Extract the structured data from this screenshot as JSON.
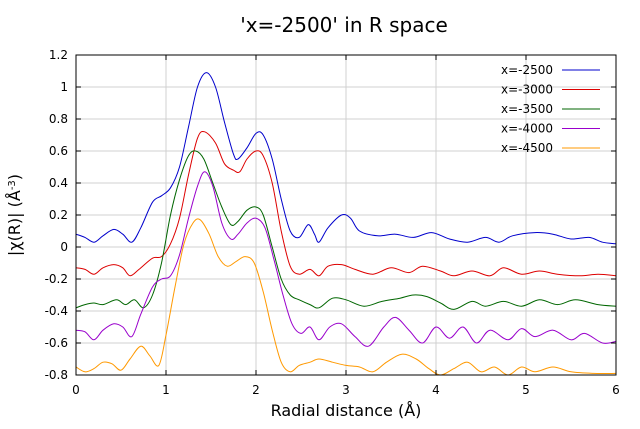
{
  "chart_data": {
    "type": "line",
    "title": "'x=-2500' in R space",
    "xlabel": "Radial distance    (Å)",
    "ylabel": "|χ(R)|    (Å",
    "ylabel_sup": "-3",
    "ylabel_close": ")",
    "xlim": [
      0,
      6
    ],
    "ylim": [
      -0.8,
      1.2
    ],
    "x_ticks": [
      0,
      1,
      2,
      3,
      4,
      5,
      6
    ],
    "x_tick_labels": [
      "0",
      "1",
      "2",
      "3",
      "4",
      "5",
      "6"
    ],
    "y_ticks": [
      -0.8,
      -0.6,
      -0.4,
      -0.2,
      0,
      0.2,
      0.4,
      0.6,
      0.8,
      1,
      1.2
    ],
    "y_tick_labels": [
      "-0.8",
      "-0.6",
      "-0.4",
      "-0.2",
      "0",
      "0.2",
      "0.4",
      "0.6",
      "0.8",
      "1",
      "1.2"
    ],
    "grid": true,
    "legend_position": "top-right",
    "series": [
      {
        "name": "x=-2500",
        "color": "#0000cc",
        "points": [
          [
            0,
            0.08
          ],
          [
            0.1,
            0.06
          ],
          [
            0.2,
            0.03
          ],
          [
            0.3,
            0.07
          ],
          [
            0.42,
            0.11
          ],
          [
            0.52,
            0.08
          ],
          [
            0.62,
            0.03
          ],
          [
            0.72,
            0.12
          ],
          [
            0.85,
            0.28
          ],
          [
            0.95,
            0.32
          ],
          [
            1.05,
            0.37
          ],
          [
            1.15,
            0.5
          ],
          [
            1.25,
            0.75
          ],
          [
            1.35,
            1.0
          ],
          [
            1.45,
            1.09
          ],
          [
            1.55,
            1.0
          ],
          [
            1.65,
            0.78
          ],
          [
            1.75,
            0.58
          ],
          [
            1.8,
            0.55
          ],
          [
            1.9,
            0.62
          ],
          [
            2.0,
            0.71
          ],
          [
            2.08,
            0.7
          ],
          [
            2.18,
            0.55
          ],
          [
            2.28,
            0.3
          ],
          [
            2.38,
            0.1
          ],
          [
            2.48,
            0.06
          ],
          [
            2.58,
            0.14
          ],
          [
            2.65,
            0.08
          ],
          [
            2.7,
            0.03
          ],
          [
            2.8,
            0.12
          ],
          [
            2.95,
            0.2
          ],
          [
            3.05,
            0.18
          ],
          [
            3.15,
            0.1
          ],
          [
            3.35,
            0.07
          ],
          [
            3.55,
            0.08
          ],
          [
            3.75,
            0.06
          ],
          [
            3.95,
            0.09
          ],
          [
            4.15,
            0.05
          ],
          [
            4.35,
            0.03
          ],
          [
            4.55,
            0.06
          ],
          [
            4.7,
            0.03
          ],
          [
            4.85,
            0.07
          ],
          [
            5.1,
            0.09
          ],
          [
            5.3,
            0.08
          ],
          [
            5.5,
            0.05
          ],
          [
            5.7,
            0.06
          ],
          [
            5.85,
            0.03
          ],
          [
            6.0,
            0.02
          ]
        ]
      },
      {
        "name": "x=-3000",
        "color": "#dd0000",
        "points": [
          [
            0,
            -0.13
          ],
          [
            0.1,
            -0.14
          ],
          [
            0.2,
            -0.17
          ],
          [
            0.3,
            -0.13
          ],
          [
            0.42,
            -0.11
          ],
          [
            0.52,
            -0.13
          ],
          [
            0.6,
            -0.18
          ],
          [
            0.7,
            -0.14
          ],
          [
            0.85,
            -0.07
          ],
          [
            0.95,
            -0.06
          ],
          [
            1.05,
            0.02
          ],
          [
            1.15,
            0.18
          ],
          [
            1.25,
            0.45
          ],
          [
            1.35,
            0.68
          ],
          [
            1.43,
            0.72
          ],
          [
            1.55,
            0.65
          ],
          [
            1.65,
            0.52
          ],
          [
            1.75,
            0.48
          ],
          [
            1.82,
            0.47
          ],
          [
            1.9,
            0.55
          ],
          [
            2.0,
            0.6
          ],
          [
            2.08,
            0.57
          ],
          [
            2.18,
            0.4
          ],
          [
            2.28,
            0.1
          ],
          [
            2.38,
            -0.12
          ],
          [
            2.48,
            -0.17
          ],
          [
            2.6,
            -0.14
          ],
          [
            2.7,
            -0.18
          ],
          [
            2.8,
            -0.12
          ],
          [
            2.95,
            -0.11
          ],
          [
            3.1,
            -0.14
          ],
          [
            3.3,
            -0.17
          ],
          [
            3.5,
            -0.13
          ],
          [
            3.7,
            -0.16
          ],
          [
            3.85,
            -0.12
          ],
          [
            4.05,
            -0.15
          ],
          [
            4.2,
            -0.18
          ],
          [
            4.4,
            -0.15
          ],
          [
            4.6,
            -0.18
          ],
          [
            4.75,
            -0.13
          ],
          [
            4.95,
            -0.17
          ],
          [
            5.15,
            -0.15
          ],
          [
            5.35,
            -0.17
          ],
          [
            5.6,
            -0.18
          ],
          [
            5.8,
            -0.17
          ],
          [
            6.0,
            -0.18
          ]
        ]
      },
      {
        "name": "x=-3500",
        "color": "#006600",
        "points": [
          [
            0,
            -0.38
          ],
          [
            0.1,
            -0.36
          ],
          [
            0.2,
            -0.35
          ],
          [
            0.3,
            -0.36
          ],
          [
            0.45,
            -0.33
          ],
          [
            0.55,
            -0.36
          ],
          [
            0.65,
            -0.33
          ],
          [
            0.75,
            -0.38
          ],
          [
            0.85,
            -0.3
          ],
          [
            0.95,
            -0.1
          ],
          [
            1.05,
            0.2
          ],
          [
            1.15,
            0.42
          ],
          [
            1.25,
            0.57
          ],
          [
            1.33,
            0.6
          ],
          [
            1.42,
            0.55
          ],
          [
            1.52,
            0.4
          ],
          [
            1.62,
            0.25
          ],
          [
            1.72,
            0.14
          ],
          [
            1.8,
            0.16
          ],
          [
            1.9,
            0.23
          ],
          [
            2.0,
            0.25
          ],
          [
            2.08,
            0.2
          ],
          [
            2.18,
            0.0
          ],
          [
            2.28,
            -0.2
          ],
          [
            2.38,
            -0.3
          ],
          [
            2.48,
            -0.33
          ],
          [
            2.6,
            -0.36
          ],
          [
            2.7,
            -0.38
          ],
          [
            2.85,
            -0.32
          ],
          [
            3.0,
            -0.33
          ],
          [
            3.2,
            -0.37
          ],
          [
            3.4,
            -0.34
          ],
          [
            3.6,
            -0.32
          ],
          [
            3.75,
            -0.3
          ],
          [
            3.9,
            -0.31
          ],
          [
            4.05,
            -0.35
          ],
          [
            4.2,
            -0.39
          ],
          [
            4.4,
            -0.34
          ],
          [
            4.55,
            -0.37
          ],
          [
            4.75,
            -0.34
          ],
          [
            4.95,
            -0.37
          ],
          [
            5.15,
            -0.33
          ],
          [
            5.35,
            -0.36
          ],
          [
            5.55,
            -0.33
          ],
          [
            5.8,
            -0.36
          ],
          [
            6.0,
            -0.37
          ]
        ]
      },
      {
        "name": "x=-4000",
        "color": "#9900cc",
        "points": [
          [
            0,
            -0.52
          ],
          [
            0.1,
            -0.53
          ],
          [
            0.2,
            -0.58
          ],
          [
            0.3,
            -0.52
          ],
          [
            0.42,
            -0.48
          ],
          [
            0.52,
            -0.5
          ],
          [
            0.62,
            -0.56
          ],
          [
            0.72,
            -0.42
          ],
          [
            0.85,
            -0.25
          ],
          [
            0.95,
            -0.2
          ],
          [
            1.05,
            -0.18
          ],
          [
            1.15,
            -0.05
          ],
          [
            1.25,
            0.18
          ],
          [
            1.35,
            0.38
          ],
          [
            1.43,
            0.47
          ],
          [
            1.52,
            0.38
          ],
          [
            1.62,
            0.15
          ],
          [
            1.72,
            0.05
          ],
          [
            1.8,
            0.08
          ],
          [
            1.9,
            0.15
          ],
          [
            2.0,
            0.18
          ],
          [
            2.1,
            0.12
          ],
          [
            2.2,
            -0.08
          ],
          [
            2.3,
            -0.3
          ],
          [
            2.4,
            -0.48
          ],
          [
            2.5,
            -0.54
          ],
          [
            2.6,
            -0.5
          ],
          [
            2.7,
            -0.58
          ],
          [
            2.82,
            -0.5
          ],
          [
            2.95,
            -0.48
          ],
          [
            3.1,
            -0.56
          ],
          [
            3.25,
            -0.62
          ],
          [
            3.42,
            -0.5
          ],
          [
            3.55,
            -0.44
          ],
          [
            3.7,
            -0.52
          ],
          [
            3.85,
            -0.6
          ],
          [
            4.0,
            -0.5
          ],
          [
            4.15,
            -0.57
          ],
          [
            4.3,
            -0.5
          ],
          [
            4.45,
            -0.6
          ],
          [
            4.6,
            -0.52
          ],
          [
            4.8,
            -0.58
          ],
          [
            4.95,
            -0.51
          ],
          [
            5.1,
            -0.56
          ],
          [
            5.3,
            -0.52
          ],
          [
            5.5,
            -0.58
          ],
          [
            5.65,
            -0.54
          ],
          [
            5.85,
            -0.6
          ],
          [
            6.0,
            -0.59
          ]
        ]
      },
      {
        "name": "x=-4500",
        "color": "#ff9900",
        "points": [
          [
            0,
            -0.75
          ],
          [
            0.1,
            -0.78
          ],
          [
            0.2,
            -0.76
          ],
          [
            0.3,
            -0.72
          ],
          [
            0.4,
            -0.73
          ],
          [
            0.5,
            -0.77
          ],
          [
            0.6,
            -0.7
          ],
          [
            0.72,
            -0.62
          ],
          [
            0.82,
            -0.68
          ],
          [
            0.92,
            -0.74
          ],
          [
            1.0,
            -0.55
          ],
          [
            1.1,
            -0.25
          ],
          [
            1.2,
            0.02
          ],
          [
            1.3,
            0.15
          ],
          [
            1.38,
            0.17
          ],
          [
            1.48,
            0.08
          ],
          [
            1.58,
            -0.06
          ],
          [
            1.68,
            -0.12
          ],
          [
            1.78,
            -0.09
          ],
          [
            1.88,
            -0.06
          ],
          [
            1.98,
            -0.1
          ],
          [
            2.08,
            -0.28
          ],
          [
            2.18,
            -0.52
          ],
          [
            2.28,
            -0.72
          ],
          [
            2.38,
            -0.78
          ],
          [
            2.48,
            -0.74
          ],
          [
            2.6,
            -0.72
          ],
          [
            2.7,
            -0.7
          ],
          [
            2.85,
            -0.72
          ],
          [
            3.0,
            -0.74
          ],
          [
            3.15,
            -0.75
          ],
          [
            3.3,
            -0.78
          ],
          [
            3.45,
            -0.72
          ],
          [
            3.62,
            -0.67
          ],
          [
            3.78,
            -0.7
          ],
          [
            3.92,
            -0.76
          ],
          [
            4.05,
            -0.8
          ],
          [
            4.2,
            -0.76
          ],
          [
            4.35,
            -0.72
          ],
          [
            4.5,
            -0.78
          ],
          [
            4.65,
            -0.75
          ],
          [
            4.8,
            -0.8
          ],
          [
            4.95,
            -0.75
          ],
          [
            5.1,
            -0.78
          ],
          [
            5.3,
            -0.75
          ],
          [
            5.5,
            -0.78
          ],
          [
            5.75,
            -0.79
          ],
          [
            6.0,
            -0.79
          ]
        ]
      }
    ]
  }
}
